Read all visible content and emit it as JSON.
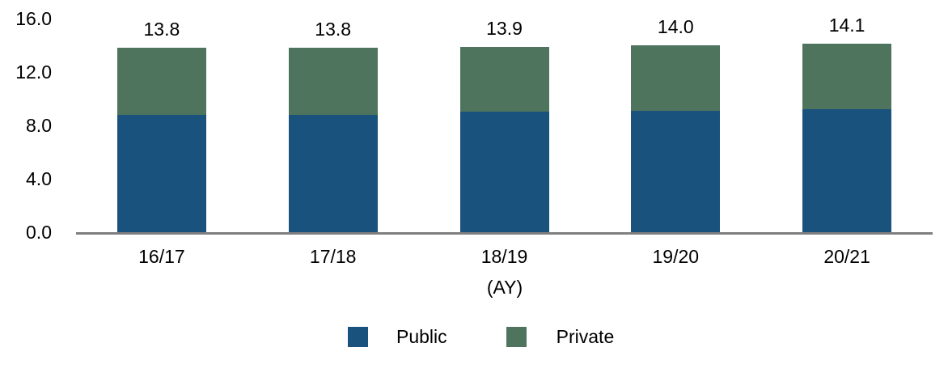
{
  "chart_data": {
    "type": "bar",
    "stacked": true,
    "title": "",
    "xlabel": "(AY)",
    "ylabel": "",
    "categories": [
      "16/17",
      "17/18",
      "18/19",
      "19/20",
      "20/21"
    ],
    "series": [
      {
        "name": "Public",
        "color": "#1A527E",
        "values": [
          8.8,
          8.8,
          9.0,
          9.1,
          9.2
        ]
      },
      {
        "name": "Private",
        "color": "#4F745E",
        "values": [
          5.0,
          5.0,
          4.9,
          4.9,
          4.9
        ]
      }
    ],
    "totals": [
      13.8,
      13.8,
      13.9,
      14.0,
      14.1
    ],
    "total_labels": [
      "13.8",
      "13.8",
      "13.9",
      "14.0",
      "14.1"
    ],
    "ylim": [
      0,
      16
    ],
    "yticks": [
      "0.0",
      "4.0",
      "8.0",
      "12.0",
      "16.0"
    ],
    "ytick_values": [
      0,
      4,
      8,
      12,
      16
    ],
    "grid": false,
    "legend_position": "bottom",
    "axis_line_color": "#7F7F7F",
    "text_color": "#000000",
    "background_color": "#FFFFFF"
  }
}
